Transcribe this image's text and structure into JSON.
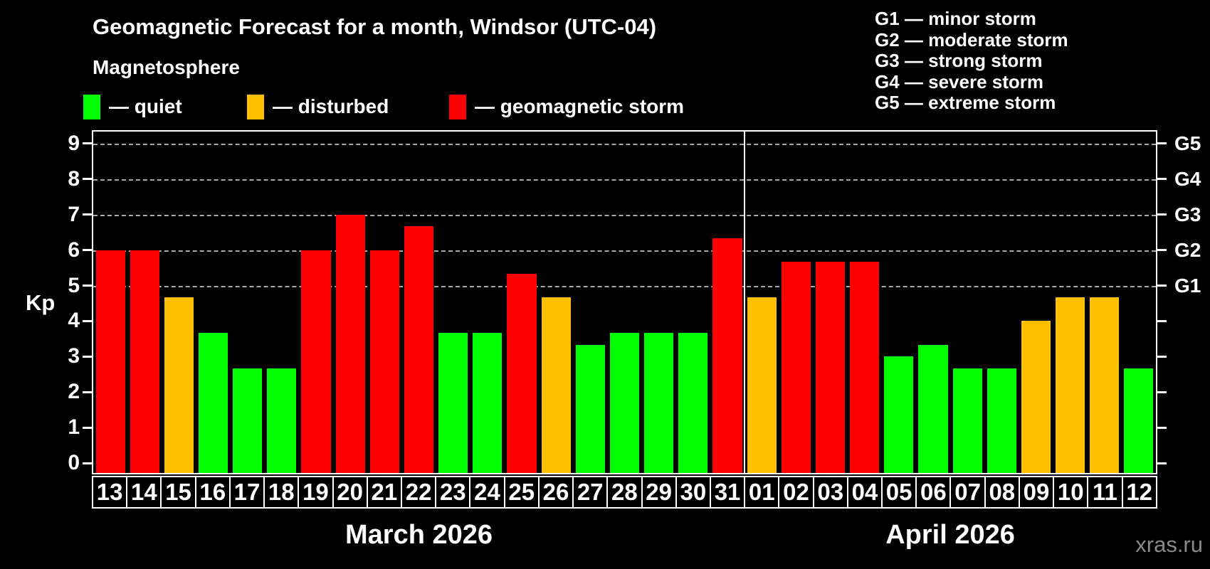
{
  "title": "Geomagnetic Forecast for a month, Windsor (UTC-04)",
  "subtitle": "Magnetosphere",
  "legend": {
    "items": [
      {
        "key": "quiet",
        "label": "— quiet"
      },
      {
        "key": "disturbed",
        "label": "— disturbed"
      },
      {
        "key": "storm",
        "label": "— geomagnetic storm"
      }
    ]
  },
  "g_legend": {
    "lines": [
      "G1 — minor storm",
      "G2 — moderate storm",
      "G3 — strong storm",
      "G4 — severe storm",
      "G5 — extreme storm"
    ]
  },
  "y_axis": {
    "label": "Kp",
    "ticks": [
      "0",
      "1",
      "2",
      "3",
      "4",
      "5",
      "6",
      "7",
      "8",
      "9"
    ]
  },
  "right_axis": {
    "labels": [
      {
        "kp": 5,
        "text": "G1"
      },
      {
        "kp": 6,
        "text": "G2"
      },
      {
        "kp": 7,
        "text": "G3"
      },
      {
        "kp": 8,
        "text": "G4"
      },
      {
        "kp": 9,
        "text": "G5"
      }
    ]
  },
  "watermark": "xras.ru",
  "colors": {
    "quiet": "#00ff00",
    "disturbed": "#ffc000",
    "storm": "#ff0000",
    "axis": "#ffffff",
    "grid": "#aaaaaa",
    "watermark": "#8a8a8a"
  },
  "chart_data": {
    "type": "bar",
    "title": "Geomagnetic Forecast for a month, Windsor (UTC-04)",
    "ylabel": "Kp",
    "ylim": [
      0,
      9
    ],
    "grid_kp_levels": [
      5,
      6,
      7,
      8,
      9
    ],
    "legend_position": "top",
    "months": [
      {
        "label": "March 2026",
        "days": [
          {
            "day": "13",
            "kp": 6.0,
            "level": "storm"
          },
          {
            "day": "14",
            "kp": 6.0,
            "level": "storm"
          },
          {
            "day": "15",
            "kp": 4.67,
            "level": "disturbed"
          },
          {
            "day": "16",
            "kp": 3.67,
            "level": "quiet"
          },
          {
            "day": "17",
            "kp": 2.67,
            "level": "quiet"
          },
          {
            "day": "18",
            "kp": 2.67,
            "level": "quiet"
          },
          {
            "day": "19",
            "kp": 6.0,
            "level": "storm"
          },
          {
            "day": "20",
            "kp": 7.0,
            "level": "storm"
          },
          {
            "day": "21",
            "kp": 6.0,
            "level": "storm"
          },
          {
            "day": "22",
            "kp": 6.67,
            "level": "storm"
          },
          {
            "day": "23",
            "kp": 3.67,
            "level": "quiet"
          },
          {
            "day": "24",
            "kp": 3.67,
            "level": "quiet"
          },
          {
            "day": "25",
            "kp": 5.33,
            "level": "storm"
          },
          {
            "day": "26",
            "kp": 4.67,
            "level": "disturbed"
          },
          {
            "day": "27",
            "kp": 3.33,
            "level": "quiet"
          },
          {
            "day": "28",
            "kp": 3.67,
            "level": "quiet"
          },
          {
            "day": "29",
            "kp": 3.67,
            "level": "quiet"
          },
          {
            "day": "30",
            "kp": 3.67,
            "level": "quiet"
          },
          {
            "day": "31",
            "kp": 6.33,
            "level": "storm"
          }
        ]
      },
      {
        "label": "April 2026",
        "days": [
          {
            "day": "01",
            "kp": 4.67,
            "level": "disturbed"
          },
          {
            "day": "02",
            "kp": 5.67,
            "level": "storm"
          },
          {
            "day": "03",
            "kp": 5.67,
            "level": "storm"
          },
          {
            "day": "04",
            "kp": 5.67,
            "level": "storm"
          },
          {
            "day": "05",
            "kp": 3.0,
            "level": "quiet"
          },
          {
            "day": "06",
            "kp": 3.33,
            "level": "quiet"
          },
          {
            "day": "07",
            "kp": 2.67,
            "level": "quiet"
          },
          {
            "day": "08",
            "kp": 2.67,
            "level": "quiet"
          },
          {
            "day": "09",
            "kp": 4.0,
            "level": "disturbed"
          },
          {
            "day": "10",
            "kp": 4.67,
            "level": "disturbed"
          },
          {
            "day": "11",
            "kp": 4.67,
            "level": "disturbed"
          },
          {
            "day": "12",
            "kp": 2.67,
            "level": "quiet"
          }
        ]
      }
    ]
  }
}
